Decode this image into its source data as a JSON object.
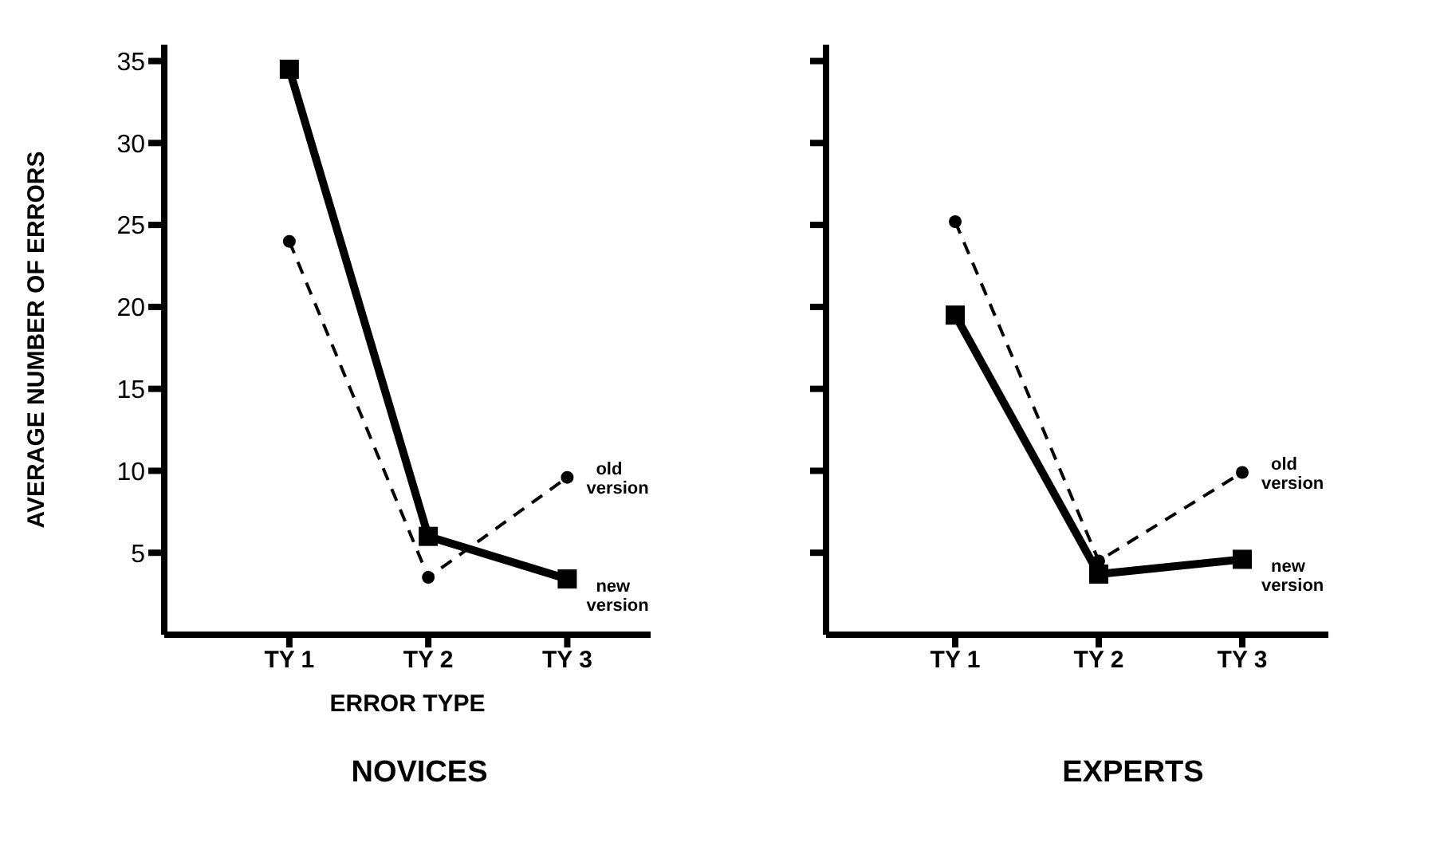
{
  "chart_data": [
    {
      "type": "line",
      "title": "NOVICES",
      "xlabel": "ERROR TYPE",
      "ylabel": "AVERAGE NUMBER OF ERRORS",
      "categories": [
        "TY 1",
        "TY 2",
        "TY 3"
      ],
      "ylim": [
        0,
        36
      ],
      "yticks": [
        5,
        10,
        15,
        20,
        25,
        30,
        35
      ],
      "grid": false,
      "legend": false,
      "series": [
        {
          "name": "new version",
          "color": "#000000",
          "values": [
            34.5,
            6,
            3.4
          ],
          "marker": "square",
          "line_style": "solid"
        },
        {
          "name": "old version",
          "color": "#000000",
          "values": [
            24,
            3.5,
            9.6
          ],
          "marker": "circle",
          "line_style": "dashed"
        }
      ]
    },
    {
      "type": "line",
      "title": "EXPERTS",
      "categories": [
        "TY 1",
        "TY 2",
        "TY 3"
      ],
      "ylim": [
        0,
        36
      ],
      "yticks": [
        5,
        10,
        15,
        20,
        25,
        30,
        35
      ],
      "grid": false,
      "legend": false,
      "tick_labels": "x",
      "series": [
        {
          "name": "new version",
          "color": "#000000",
          "values": [
            19.5,
            3.7,
            4.6
          ],
          "marker": "square",
          "line_style": "solid"
        },
        {
          "name": "old version",
          "color": "#000000",
          "values": [
            25.2,
            4.5,
            9.9
          ],
          "marker": "circle",
          "line_style": "dashed"
        }
      ]
    }
  ]
}
